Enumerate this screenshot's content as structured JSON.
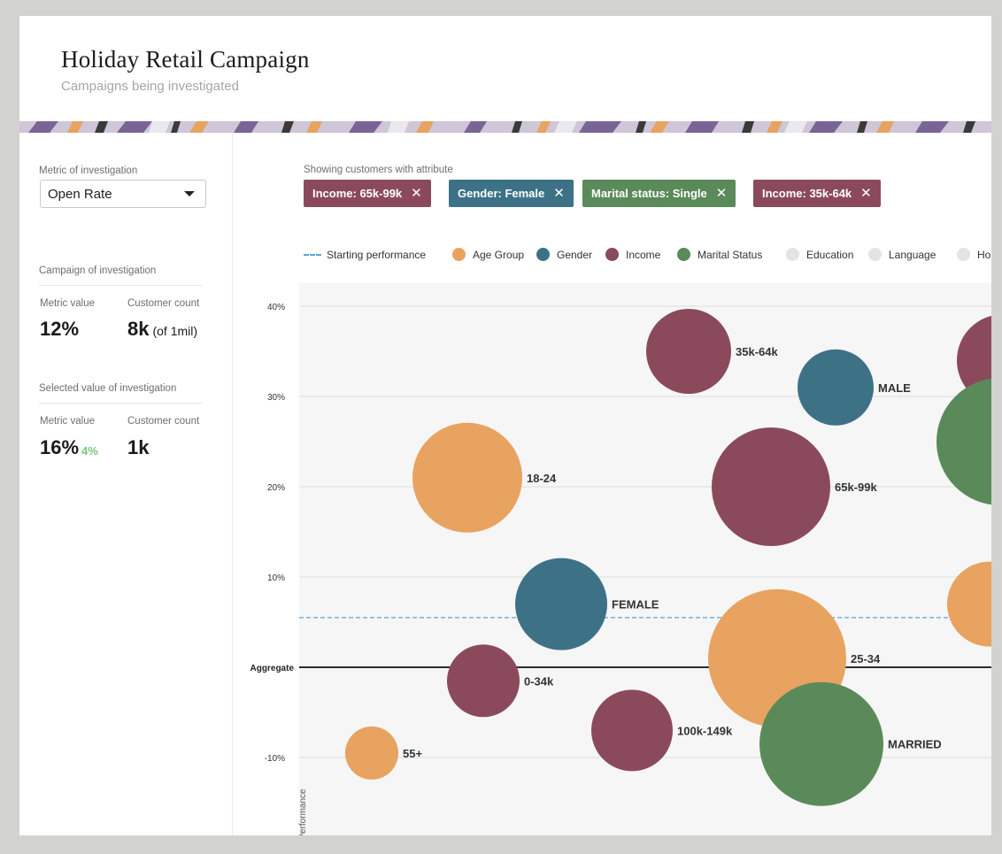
{
  "header": {
    "title": "Holiday Retail Campaign",
    "subtitle": "Campaigns being investigated"
  },
  "sidebar": {
    "metric_label": "Metric of investigation",
    "metric_selected": "Open Rate",
    "campaign_section": "Campaign of investigation",
    "campaign": {
      "metric_value_label": "Metric value",
      "customer_count_label": "Customer count",
      "metric_value": "12%",
      "customer_count": "8k",
      "customer_count_suffix": "(of 1mil)"
    },
    "selected_section": "Selected value of investigation",
    "selected": {
      "metric_value_label": "Metric value",
      "customer_count_label": "Customer count",
      "metric_value": "16%",
      "metric_delta": "4%",
      "customer_count": "1k"
    }
  },
  "filters": {
    "label": "Showing customers with attribute",
    "chips": [
      {
        "label": "Income: 65k-99k",
        "color": "#8b4a5c"
      },
      {
        "label": "Gender: Female",
        "color": "#3d7286"
      },
      {
        "label": "Marital status: Single",
        "color": "#5b8a5a"
      },
      {
        "label": "Income: 35k-64k",
        "color": "#8b4a5c"
      }
    ],
    "close_icon": "close-icon"
  },
  "legend": {
    "starting_performance": "Starting performance",
    "items": [
      {
        "label": "Age Group",
        "color": "#e8a360"
      },
      {
        "label": "Gender",
        "color": "#3d7286"
      },
      {
        "label": "Income",
        "color": "#8b4a5c"
      },
      {
        "label": "Marital Status",
        "color": "#5b8a5a"
      },
      {
        "label": "Education",
        "color": "#e4e4e4"
      },
      {
        "label": "Language",
        "color": "#e4e4e4"
      },
      {
        "label": "Hom",
        "color": "#e4e4e4"
      }
    ]
  },
  "chart_data": {
    "type": "scatter",
    "ylabel": "Performance",
    "ylim": [
      -15,
      41
    ],
    "y_ticks": [
      "40%",
      "30%",
      "20%",
      "10%",
      "-10%"
    ],
    "y_tick_values": [
      40,
      30,
      20,
      10,
      -10
    ],
    "aggregate_label": "Aggregate",
    "aggregate_value": 0,
    "starting_performance_value": 5.5,
    "grid": true,
    "bubbles": [
      {
        "label": "35k-64k",
        "group": "Income",
        "y": 35
      },
      {
        "label": "MALE",
        "group": "Gender",
        "y": 31
      },
      {
        "label": "",
        "group": "Income",
        "y": 34
      },
      {
        "label": "",
        "group": "Marital Status",
        "y": 25
      },
      {
        "label": "18-24",
        "group": "Age Group",
        "y": 21
      },
      {
        "label": "65k-99k",
        "group": "Income",
        "y": 20
      },
      {
        "label": "FEMALE",
        "group": "Gender",
        "y": 7
      },
      {
        "label": "",
        "group": "Age Group",
        "y": 7
      },
      {
        "label": "25-34",
        "group": "Age Group",
        "y": 1
      },
      {
        "label": "0-34k",
        "group": "Income",
        "y": -1.5
      },
      {
        "label": "100k-149k",
        "group": "Income",
        "y": -7
      },
      {
        "label": "MARRIED",
        "group": "Marital Status",
        "y": -8.5
      },
      {
        "label": "55+",
        "group": "Age Group",
        "y": -9.5
      }
    ]
  }
}
